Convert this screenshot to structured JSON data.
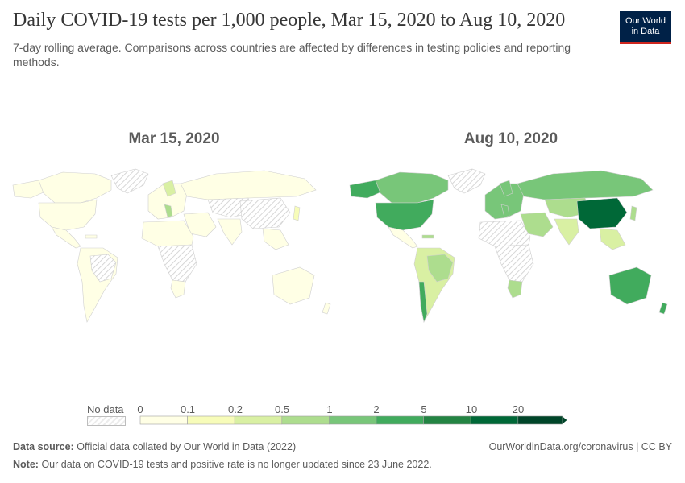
{
  "header": {
    "title": "Daily COVID-19 tests per 1,000 people, Mar 15, 2020 to Aug 10, 2020",
    "subtitle": "7-day rolling average. Comparisons across countries are affected by differences in testing policies and reporting methods."
  },
  "logo": {
    "line1": "Our World",
    "line2": "in Data",
    "bg": "#002147",
    "accent": "#ce261e"
  },
  "panels": [
    {
      "date": "Mar 15, 2020"
    },
    {
      "date": "Aug 10, 2020"
    }
  ],
  "legend": {
    "no_data_label": "No data",
    "ticks": [
      "0",
      "0.1",
      "0.2",
      "0.5",
      "1",
      "2",
      "5",
      "10",
      "20"
    ],
    "colors": [
      "#ffffe5",
      "#f7fcb9",
      "#d9f0a3",
      "#addd8e",
      "#78c679",
      "#41ab5d",
      "#238443",
      "#006837",
      "#004529"
    ]
  },
  "footer": {
    "source_label": "Data source:",
    "source_text": "Official data collated by Our World in Data (2022)",
    "note_label": "Note:",
    "note_text": "Our data on COVID-19 tests and positive rate is no longer updated since 23 June 2022.",
    "url": "OurWorldinData.org/coronavirus | CC BY"
  }
}
